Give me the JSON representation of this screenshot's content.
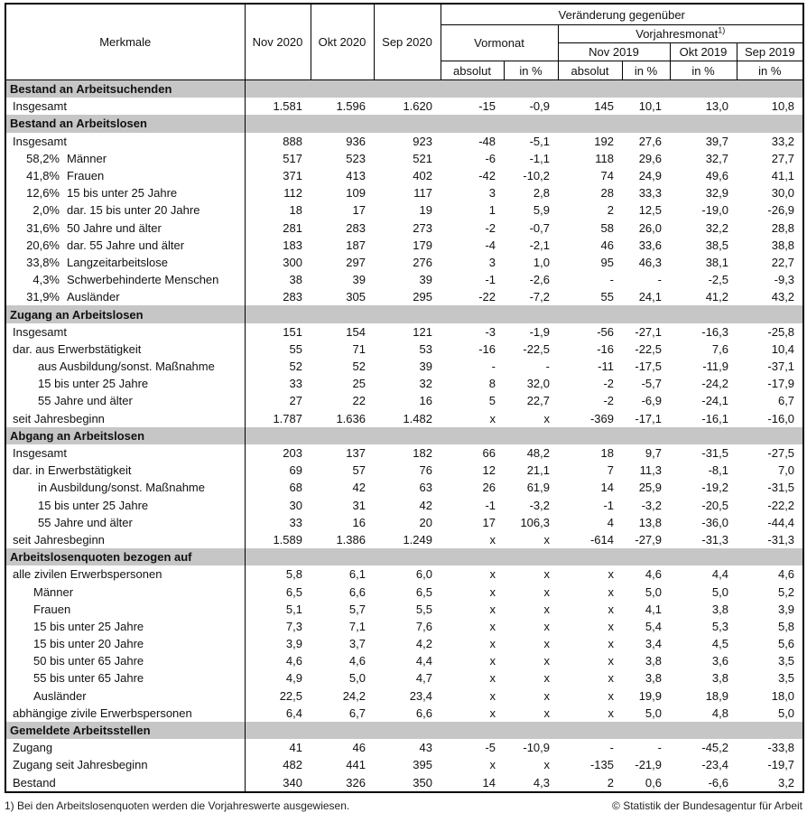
{
  "header": {
    "merkmale": "Merkmale",
    "months": [
      "Nov 2020",
      "Okt 2020",
      "Sep 2020"
    ],
    "change_title": "Veränderung gegenüber",
    "vormonat": "Vormonat",
    "vorjahresmonat": "Vorjahresmonat",
    "footnote_ref": "1)",
    "prev_year_months": [
      "Nov 2019",
      "Okt 2019",
      "Sep 2019"
    ],
    "absolut": "absolut",
    "in_percent": "in %"
  },
  "colors": {
    "section_bar": "#c6c6c6",
    "border": "#000000",
    "background": "#ffffff"
  },
  "sections": [
    {
      "title": "Bestand an Arbeitsuchenden",
      "rows": [
        {
          "label": "Insgesamt",
          "indent": 0,
          "pct": "",
          "values": [
            "1.581",
            "1.596",
            "1.620",
            "-15",
            "-0,9",
            "145",
            "10,1",
            "13,0",
            "10,8"
          ]
        }
      ]
    },
    {
      "title": "Bestand an Arbeitslosen",
      "rows": [
        {
          "label": "Insgesamt",
          "indent": 0,
          "pct": "",
          "values": [
            "888",
            "936",
            "923",
            "-48",
            "-5,1",
            "192",
            "27,6",
            "39,7",
            "33,2"
          ]
        },
        {
          "label": "Männer",
          "indent": 0,
          "pct": "58,2%",
          "values": [
            "517",
            "523",
            "521",
            "-6",
            "-1,1",
            "118",
            "29,6",
            "32,7",
            "27,7"
          ]
        },
        {
          "label": "Frauen",
          "indent": 0,
          "pct": "41,8%",
          "values": [
            "371",
            "413",
            "402",
            "-42",
            "-10,2",
            "74",
            "24,9",
            "49,6",
            "41,1"
          ]
        },
        {
          "label": "15 bis unter 25 Jahre",
          "indent": 0,
          "pct": "12,6%",
          "values": [
            "112",
            "109",
            "117",
            "3",
            "2,8",
            "28",
            "33,3",
            "32,9",
            "30,0"
          ]
        },
        {
          "label": "dar. 15 bis unter 20 Jahre",
          "indent": 0,
          "pct": "2,0%",
          "values": [
            "18",
            "17",
            "19",
            "1",
            "5,9",
            "2",
            "12,5",
            "-19,0",
            "-26,9"
          ]
        },
        {
          "label": "50 Jahre und älter",
          "indent": 0,
          "pct": "31,6%",
          "values": [
            "281",
            "283",
            "273",
            "-2",
            "-0,7",
            "58",
            "26,0",
            "32,2",
            "28,8"
          ]
        },
        {
          "label": "dar. 55 Jahre und älter",
          "indent": 0,
          "pct": "20,6%",
          "values": [
            "183",
            "187",
            "179",
            "-4",
            "-2,1",
            "46",
            "33,6",
            "38,5",
            "38,8"
          ]
        },
        {
          "label": "Langzeitarbeitslose",
          "indent": 0,
          "pct": "33,8%",
          "values": [
            "300",
            "297",
            "276",
            "3",
            "1,0",
            "95",
            "46,3",
            "38,1",
            "22,7"
          ]
        },
        {
          "label": "Schwerbehinderte Menschen",
          "indent": 0,
          "pct": "4,3%",
          "values": [
            "38",
            "39",
            "39",
            "-1",
            "-2,6",
            "-",
            "-",
            "-2,5",
            "-9,3"
          ]
        },
        {
          "label": "Ausländer",
          "indent": 0,
          "pct": "31,9%",
          "values": [
            "283",
            "305",
            "295",
            "-22",
            "-7,2",
            "55",
            "24,1",
            "41,2",
            "43,2"
          ]
        }
      ]
    },
    {
      "title": "Zugang an Arbeitslosen",
      "rows": [
        {
          "label": "Insgesamt",
          "indent": 0,
          "pct": "",
          "values": [
            "151",
            "154",
            "121",
            "-3",
            "-1,9",
            "-56",
            "-27,1",
            "-16,3",
            "-25,8"
          ]
        },
        {
          "label": "dar. aus Erwerbstätigkeit",
          "indent": 0,
          "pct": "",
          "values": [
            "55",
            "71",
            "53",
            "-16",
            "-22,5",
            "-16",
            "-22,5",
            "7,6",
            "10,4"
          ]
        },
        {
          "label": "aus Ausbildung/sonst. Maßnahme",
          "indent": 2,
          "pct": "",
          "values": [
            "52",
            "52",
            "39",
            "-",
            "-",
            "-11",
            "-17,5",
            "-11,9",
            "-37,1"
          ]
        },
        {
          "label": "15 bis unter 25 Jahre",
          "indent": 2,
          "pct": "",
          "values": [
            "33",
            "25",
            "32",
            "8",
            "32,0",
            "-2",
            "-5,7",
            "-24,2",
            "-17,9"
          ]
        },
        {
          "label": "55 Jahre und älter",
          "indent": 2,
          "pct": "",
          "values": [
            "27",
            "22",
            "16",
            "5",
            "22,7",
            "-2",
            "-6,9",
            "-24,1",
            "6,7"
          ]
        },
        {
          "label": "seit Jahresbeginn",
          "indent": 0,
          "pct": "",
          "values": [
            "1.787",
            "1.636",
            "1.482",
            "x",
            "x",
            "-369",
            "-17,1",
            "-16,1",
            "-16,0"
          ]
        }
      ]
    },
    {
      "title": "Abgang an Arbeitslosen",
      "rows": [
        {
          "label": "Insgesamt",
          "indent": 0,
          "pct": "",
          "values": [
            "203",
            "137",
            "182",
            "66",
            "48,2",
            "18",
            "9,7",
            "-31,5",
            "-27,5"
          ]
        },
        {
          "label": "dar. in Erwerbstätigkeit",
          "indent": 0,
          "pct": "",
          "values": [
            "69",
            "57",
            "76",
            "12",
            "21,1",
            "7",
            "11,3",
            "-8,1",
            "7,0"
          ]
        },
        {
          "label": "in Ausbildung/sonst. Maßnahme",
          "indent": 2,
          "pct": "",
          "values": [
            "68",
            "42",
            "63",
            "26",
            "61,9",
            "14",
            "25,9",
            "-19,2",
            "-31,5"
          ]
        },
        {
          "label": "15 bis unter 25 Jahre",
          "indent": 2,
          "pct": "",
          "values": [
            "30",
            "31",
            "42",
            "-1",
            "-3,2",
            "-1",
            "-3,2",
            "-20,5",
            "-22,2"
          ]
        },
        {
          "label": "55 Jahre und älter",
          "indent": 2,
          "pct": "",
          "values": [
            "33",
            "16",
            "20",
            "17",
            "106,3",
            "4",
            "13,8",
            "-36,0",
            "-44,4"
          ]
        },
        {
          "label": "seit Jahresbeginn",
          "indent": 0,
          "pct": "",
          "values": [
            "1.589",
            "1.386",
            "1.249",
            "x",
            "x",
            "-614",
            "-27,9",
            "-31,3",
            "-31,3"
          ]
        }
      ]
    },
    {
      "title": "Arbeitslosenquoten bezogen auf",
      "rows": [
        {
          "label": "alle zivilen Erwerbspersonen",
          "indent": 0,
          "pct": "",
          "values": [
            "5,8",
            "6,1",
            "6,0",
            "x",
            "x",
            "x",
            "4,6",
            "4,4",
            "4,6"
          ]
        },
        {
          "label": "Männer",
          "indent": 1,
          "pct": "",
          "values": [
            "6,5",
            "6,6",
            "6,5",
            "x",
            "x",
            "x",
            "5,0",
            "5,0",
            "5,2"
          ]
        },
        {
          "label": "Frauen",
          "indent": 1,
          "pct": "",
          "values": [
            "5,1",
            "5,7",
            "5,5",
            "x",
            "x",
            "x",
            "4,1",
            "3,8",
            "3,9"
          ]
        },
        {
          "label": "15 bis unter 25 Jahre",
          "indent": 1,
          "pct": "",
          "values": [
            "7,3",
            "7,1",
            "7,6",
            "x",
            "x",
            "x",
            "5,4",
            "5,3",
            "5,8"
          ]
        },
        {
          "label": "15 bis unter 20 Jahre",
          "indent": 1,
          "pct": "",
          "values": [
            "3,9",
            "3,7",
            "4,2",
            "x",
            "x",
            "x",
            "3,4",
            "4,5",
            "5,6"
          ]
        },
        {
          "label": "50 bis unter 65 Jahre",
          "indent": 1,
          "pct": "",
          "values": [
            "4,6",
            "4,6",
            "4,4",
            "x",
            "x",
            "x",
            "3,8",
            "3,6",
            "3,5"
          ]
        },
        {
          "label": "55 bis unter 65 Jahre",
          "indent": 1,
          "pct": "",
          "values": [
            "4,9",
            "5,0",
            "4,7",
            "x",
            "x",
            "x",
            "3,8",
            "3,8",
            "3,5"
          ]
        },
        {
          "label": "Ausländer",
          "indent": 1,
          "pct": "",
          "values": [
            "22,5",
            "24,2",
            "23,4",
            "x",
            "x",
            "x",
            "19,9",
            "18,9",
            "18,0"
          ]
        },
        {
          "label": "abhängige zivile Erwerbspersonen",
          "indent": 0,
          "pct": "",
          "values": [
            "6,4",
            "6,7",
            "6,6",
            "x",
            "x",
            "x",
            "5,0",
            "4,8",
            "5,0"
          ]
        }
      ]
    },
    {
      "title": "Gemeldete Arbeitsstellen",
      "rows": [
        {
          "label": "Zugang",
          "indent": 0,
          "pct": "",
          "values": [
            "41",
            "46",
            "43",
            "-5",
            "-10,9",
            "-",
            "-",
            "-45,2",
            "-33,8"
          ]
        },
        {
          "label": "Zugang seit Jahresbeginn",
          "indent": 0,
          "pct": "",
          "values": [
            "482",
            "441",
            "395",
            "x",
            "x",
            "-135",
            "-21,9",
            "-23,4",
            "-19,7"
          ]
        },
        {
          "label": "Bestand",
          "indent": 0,
          "pct": "",
          "values": [
            "340",
            "326",
            "350",
            "14",
            "4,3",
            "2",
            "0,6",
            "-6,6",
            "3,2"
          ]
        }
      ]
    }
  ],
  "footer": {
    "note": "1) Bei den Arbeitslosenquoten werden die Vorjahreswerte ausgewiesen.",
    "copyright": "© Statistik der Bundesagentur für Arbeit"
  }
}
